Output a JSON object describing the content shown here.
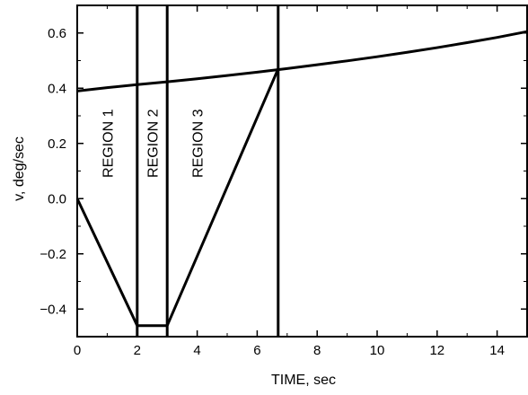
{
  "chart_data": {
    "type": "line",
    "xlabel": "TIME, sec",
    "ylabel": "v, deg/sec",
    "xlim": [
      0,
      15
    ],
    "ylim": [
      -0.5,
      0.7
    ],
    "xticks": [
      0,
      2,
      4,
      6,
      8,
      10,
      12,
      14
    ],
    "yticks": [
      -0.4,
      -0.2,
      0.0,
      0.2,
      0.4,
      0.6
    ],
    "xtick_labels": [
      "0",
      "2",
      "4",
      "6",
      "8",
      "10",
      "12",
      "14"
    ],
    "ytick_labels": [
      "−0.4",
      "−0.2",
      "0.0",
      "0.2",
      "0.4",
      "0.6"
    ],
    "grid": false,
    "legend": "none",
    "series": [
      {
        "x": [
          0,
          2,
          3,
          6.7
        ],
        "y": [
          0.0,
          -0.46,
          -0.46,
          0.47
        ]
      },
      {
        "x": [
          0,
          1,
          2,
          3,
          4,
          5,
          6,
          7,
          8,
          9,
          10,
          11,
          12,
          13,
          14,
          15
        ],
        "y": [
          0.39,
          0.402,
          0.413,
          0.423,
          0.434,
          0.446,
          0.458,
          0.471,
          0.485,
          0.499,
          0.514,
          0.53,
          0.547,
          0.565,
          0.584,
          0.605
        ]
      }
    ],
    "vertical_lines": [
      2,
      3,
      6.7
    ],
    "region_labels": [
      {
        "text": "REGION 1",
        "x": 1.0,
        "y": 0.2
      },
      {
        "text": "REGION 2",
        "x": 2.5,
        "y": 0.2
      },
      {
        "text": "REGION 3",
        "x": 4.0,
        "y": 0.2
      }
    ]
  }
}
